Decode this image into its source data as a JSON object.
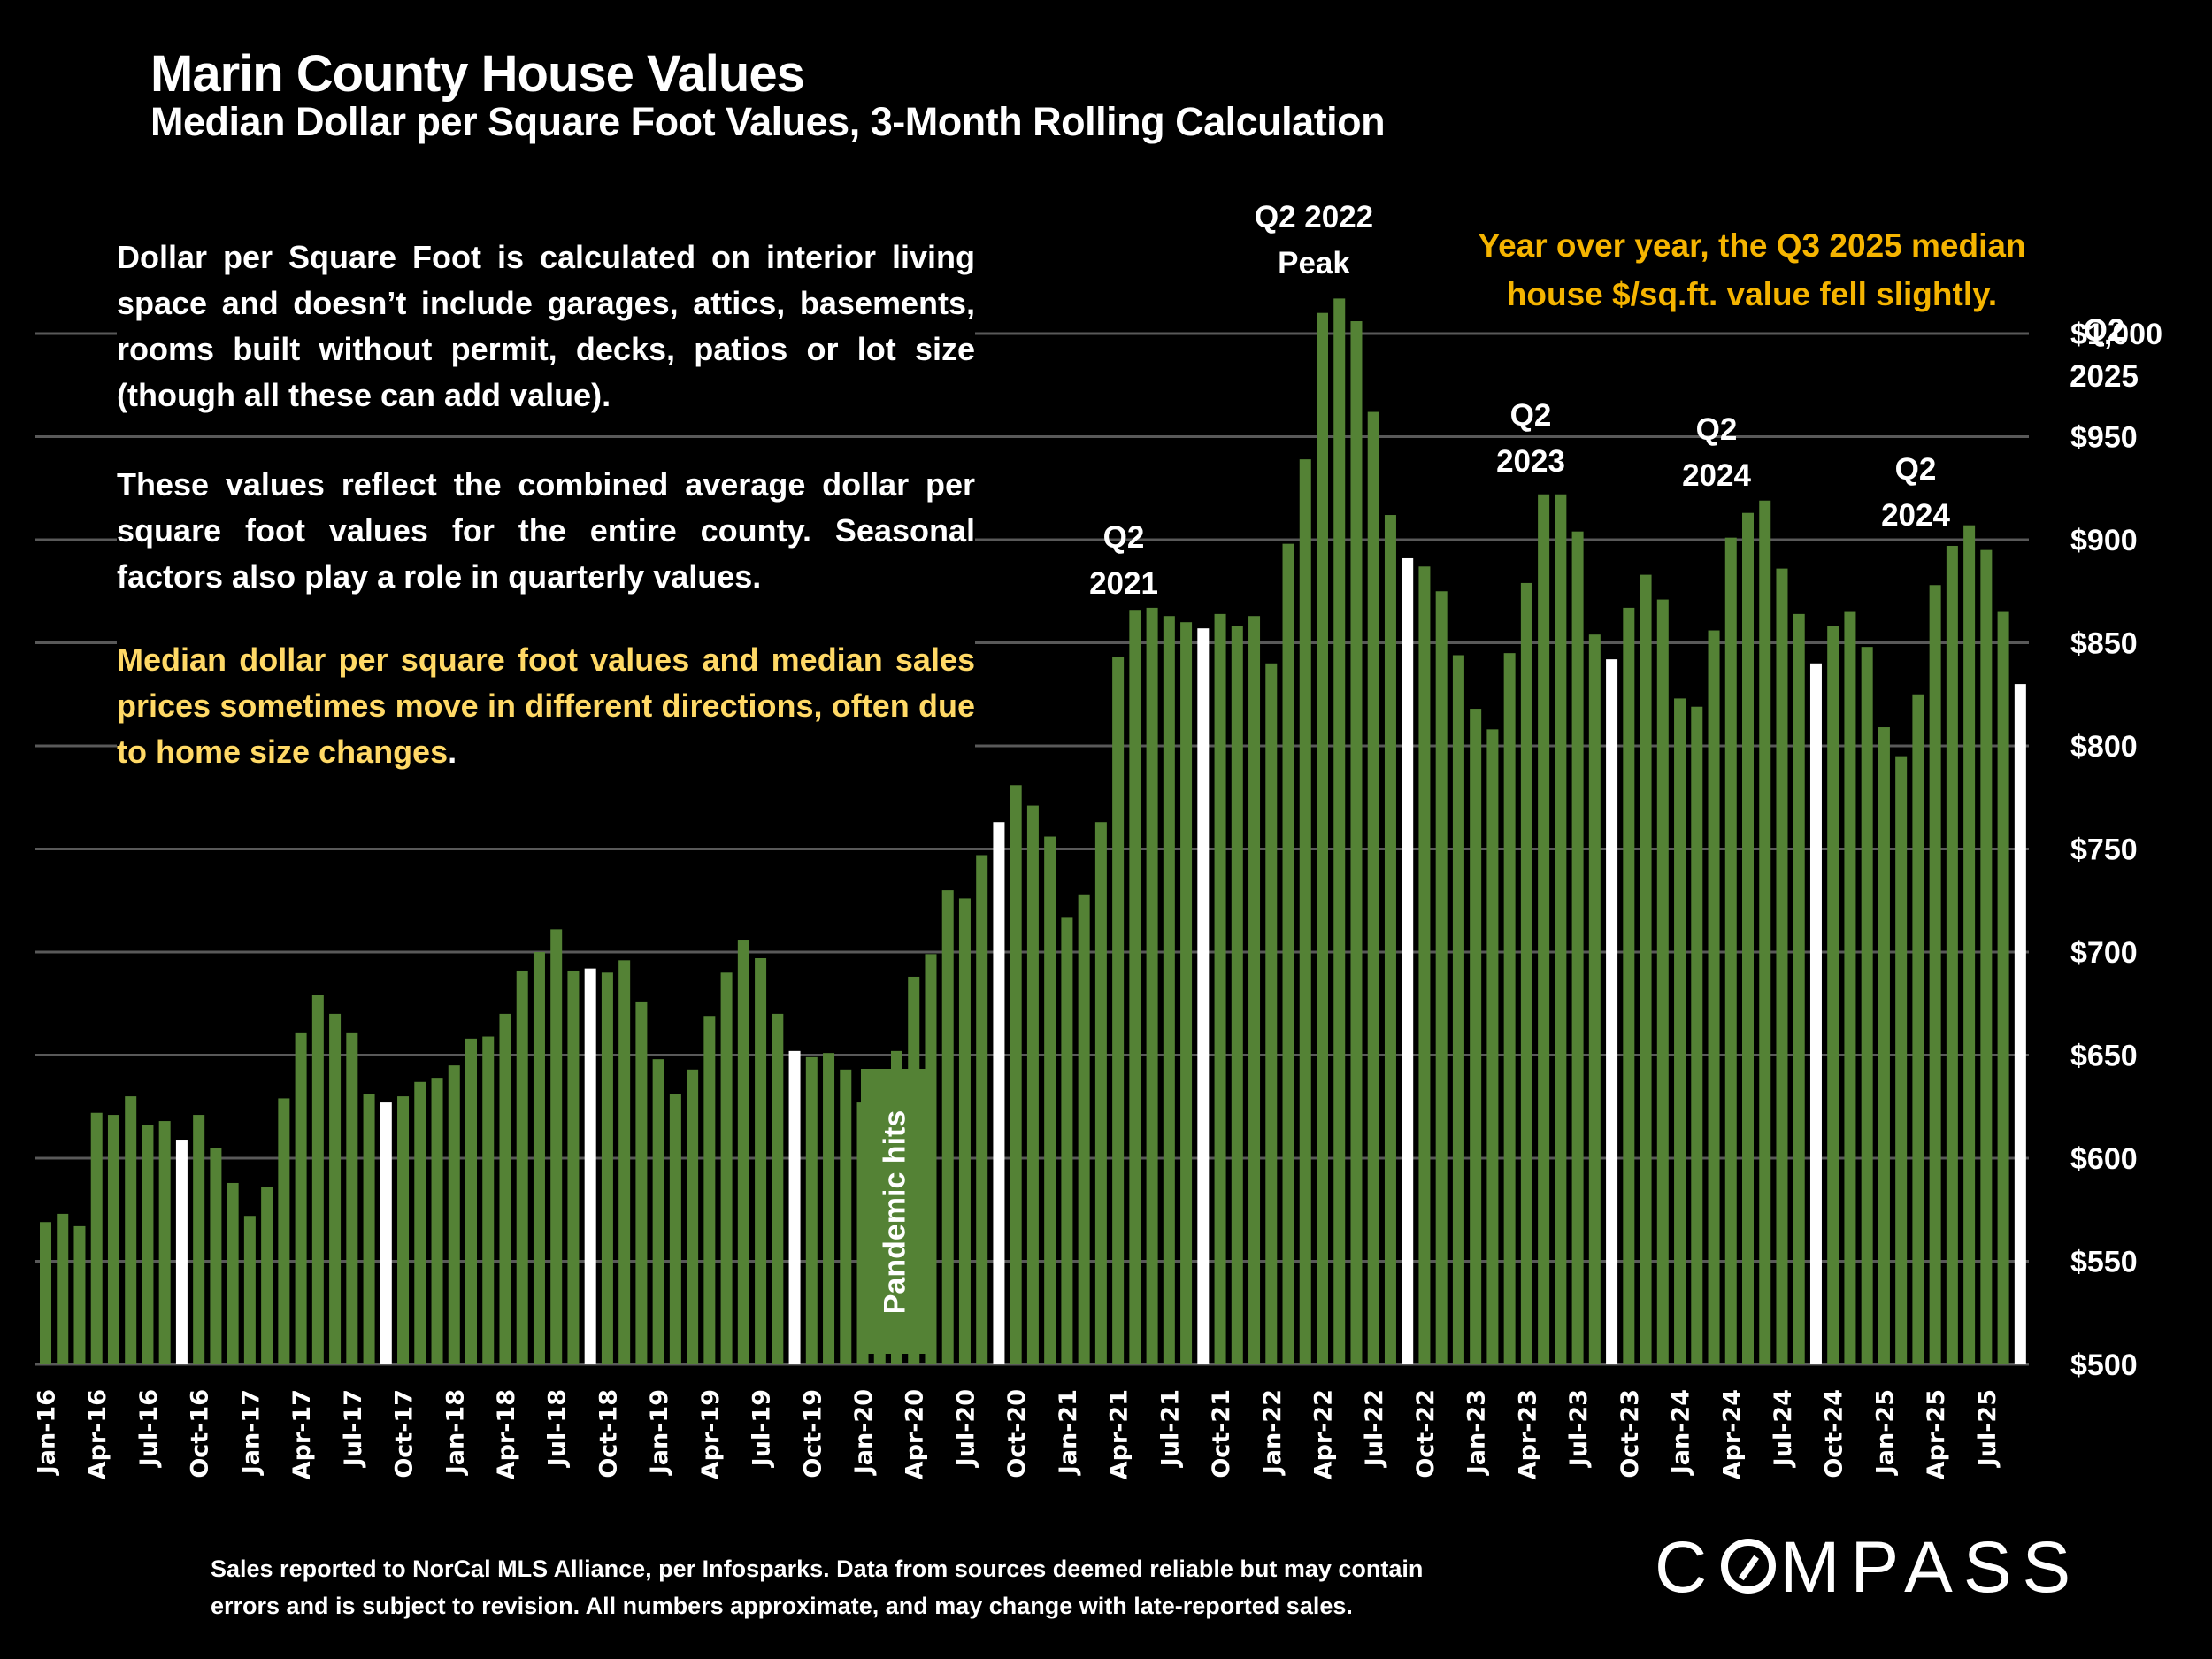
{
  "header": {
    "title": "Marin County House Values",
    "subtitle": "Median Dollar per Square Foot Values, 3-Month Rolling Calculation"
  },
  "notes": {
    "definition": "Dollar per Square Foot is calculated on interior living space and doesn’t include garages, attics, basements, rooms built without permit, decks, patios or lot size (though all these can add value).",
    "combined": "These values reflect the combined average dollar per square foot values for the entire county. Seasonal factors also play a role in quarterly values.",
    "highlight": "Median dollar per square foot values and median sales prices sometimes move in different directions, often due to home size changes",
    "highlight_period": "."
  },
  "callout": "Year over year, the Q3 2025 median house $/sq.ft. value fell slightly.",
  "annotations": {
    "q2_2021": [
      "Q2",
      "2021"
    ],
    "q2_2022": [
      "Q2 2022",
      "Peak"
    ],
    "q2_2023": [
      "Q2",
      "2023"
    ],
    "q2_2024": [
      "Q2",
      "2024"
    ],
    "q2_2024b": [
      "Q2",
      "2024"
    ],
    "q2_2025": [
      "Q2",
      "2025"
    ],
    "pandemic": "Pandemic hits"
  },
  "footer": {
    "line1": "Sales reported to NorCal MLS Alliance, per Infosparks. Data from sources  deemed reliable but may contain",
    "line2": "errors and is subject to revision. All numbers approximate, and may change with late-reported sales."
  },
  "logo": {
    "before": "C",
    "after": "MPASS"
  },
  "colors": {
    "bar": "#548235",
    "highlight_bar": "#ffffff",
    "grid": "#595959",
    "callout": "#f5b400",
    "note_highlight": "#ffd966"
  },
  "chart_data": {
    "type": "bar",
    "title": "Marin County House Values",
    "subtitle": "Median Dollar per Square Foot Values, 3-Month Rolling Calculation",
    "xlabel": "",
    "ylabel": "",
    "ylim": [
      500,
      1000
    ],
    "yticks": [
      500,
      550,
      600,
      650,
      700,
      750,
      800,
      850,
      900,
      950,
      1000
    ],
    "ytick_labels": [
      "$500",
      "$550",
      "$600",
      "$650",
      "$700",
      "$750",
      "$800",
      "$850",
      "$900",
      "$950",
      "$1,000"
    ],
    "y_axis_side": "right",
    "grid": true,
    "legend": "none",
    "highlight_rule": "September (Q3-end) bars shown in white",
    "x_tick_every": 3,
    "x_tick_labels": [
      "Jan-16",
      "Apr-16",
      "Jul-16",
      "Oct-16",
      "Jan-17",
      "Apr-17",
      "Jul-17",
      "Oct-17",
      "Jan-18",
      "Apr-18",
      "Jul-18",
      "Oct-18",
      "Jan-19",
      "Apr-19",
      "Jul-19",
      "Oct-19",
      "Jan-20",
      "Apr-20",
      "Jul-20",
      "Oct-20",
      "Jan-21",
      "Apr-21",
      "Jul-21",
      "Oct-21",
      "Jan-22",
      "Apr-22",
      "Jul-22",
      "Oct-22",
      "Jan-23",
      "Apr-23",
      "Jul-23",
      "Oct-23",
      "Jan-24",
      "Apr-24",
      "Jul-24",
      "Oct-24",
      "Jan-25",
      "Apr-25",
      "Jul-25"
    ],
    "start_month": "Jan-16",
    "end_month": "Sep-25",
    "values": [
      569,
      573,
      567,
      622,
      621,
      630,
      616,
      618,
      609,
      621,
      605,
      588,
      572,
      586,
      629,
      661,
      679,
      670,
      661,
      631,
      627,
      630,
      637,
      639,
      645,
      658,
      659,
      670,
      691,
      700,
      711,
      691,
      692,
      690,
      696,
      676,
      648,
      631,
      643,
      669,
      690,
      706,
      697,
      670,
      652,
      649,
      651,
      643,
      627,
      641,
      652,
      688,
      699,
      730,
      726,
      747,
      763,
      781,
      771,
      756,
      717,
      728,
      763,
      843,
      866,
      867,
      863,
      860,
      857,
      864,
      858,
      863,
      840,
      898,
      939,
      1010,
      1017,
      1006,
      962,
      912,
      891,
      887,
      875,
      844,
      818,
      808,
      845,
      879,
      922,
      922,
      904,
      854,
      842,
      867,
      883,
      871,
      823,
      819,
      856,
      901,
      913,
      919,
      886,
      864,
      840,
      858,
      865,
      848,
      809,
      795,
      825,
      878,
      897,
      907,
      895,
      865,
      830
    ],
    "highlight_indices": [
      8,
      20,
      32,
      44,
      56,
      68,
      80,
      92,
      104,
      116
    ],
    "annotations": [
      {
        "text": "Pandemic hits",
        "at": "Feb-20 to May-20"
      },
      {
        "text": "Q2 2021",
        "at": "Apr-21"
      },
      {
        "text": "Q2 2022 Peak",
        "at": "Apr-22"
      },
      {
        "text": "Q2 2023",
        "at": "Apr-23"
      },
      {
        "text": "Q2 2024",
        "at": "Apr-24"
      },
      {
        "text": "Q2 2024",
        "at": "Apr-25"
      },
      {
        "text": "Q2 2025",
        "at": "y-axis top"
      }
    ]
  }
}
